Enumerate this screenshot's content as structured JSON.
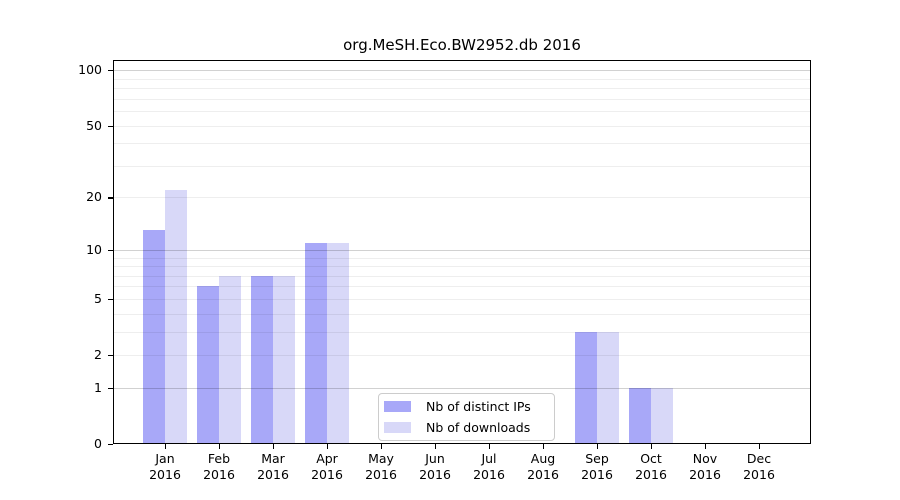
{
  "chart_data": {
    "type": "bar",
    "title": "org.MeSH.Eco.BW2952.db 2016",
    "categories": [
      "Jan",
      "Feb",
      "Mar",
      "Apr",
      "May",
      "Jun",
      "Jul",
      "Aug",
      "Sep",
      "Oct",
      "Nov",
      "Dec"
    ],
    "x_tick_year": "2016",
    "series": [
      {
        "name": "Nb of distinct IPs",
        "color": "#a8a8f8",
        "values": [
          13,
          6,
          7,
          11,
          0,
          0,
          0,
          0,
          3,
          1,
          0,
          0
        ]
      },
      {
        "name": "Nb of downloads",
        "color": "#d8d8f8",
        "values": [
          22,
          7,
          7,
          11,
          0,
          0,
          0,
          0,
          3,
          1,
          0,
          0
        ]
      }
    ],
    "xlabel": "",
    "ylabel": "",
    "y_scale": "log1p",
    "ylim": [
      0,
      113
    ],
    "y_ticks": [
      0,
      1,
      2,
      5,
      10,
      20,
      50,
      100
    ],
    "y_minor_gridlines": [
      2,
      3,
      4,
      5,
      6,
      7,
      8,
      9,
      20,
      30,
      40,
      50,
      60,
      70,
      80,
      90
    ],
    "y_major_gridlines": [
      1,
      10,
      100
    ],
    "grid": true,
    "legend_position": "bottom-center"
  }
}
